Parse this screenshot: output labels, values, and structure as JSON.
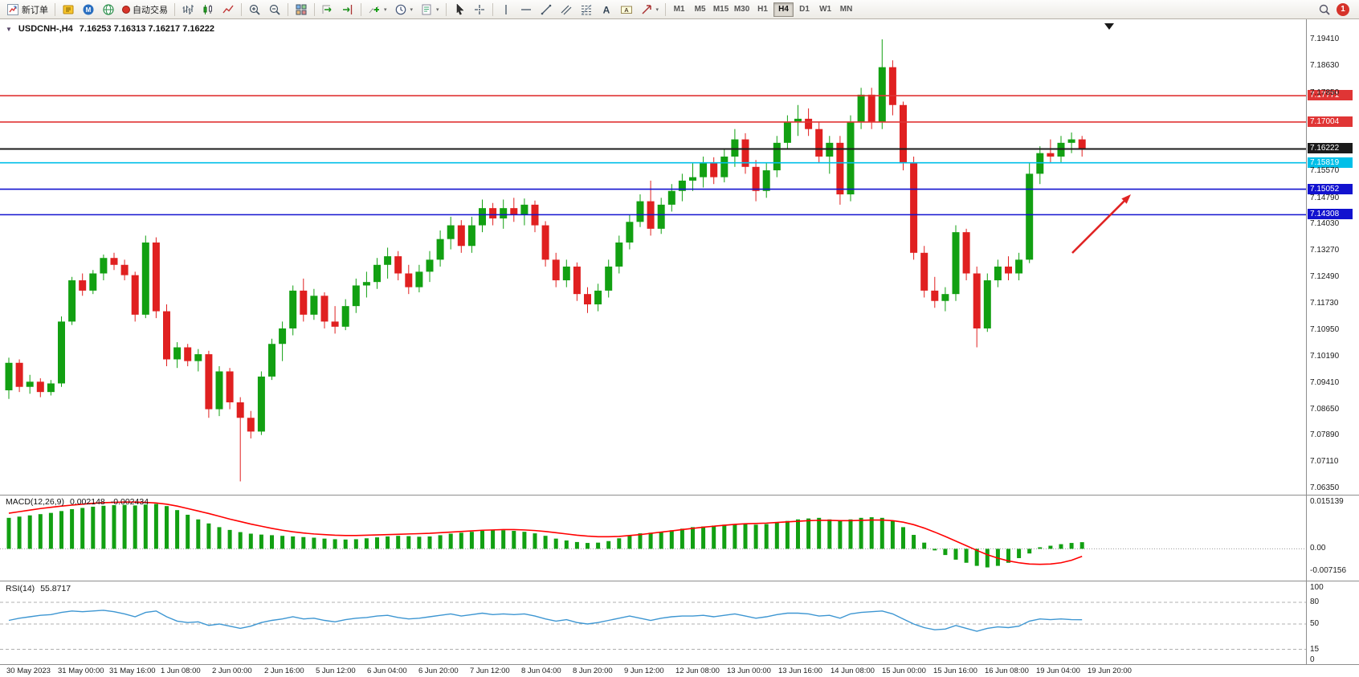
{
  "toolbar": {
    "new_order_label": "新订单",
    "autotrading_label": "自动交易",
    "timeframes": [
      "M1",
      "M5",
      "M15",
      "M30",
      "H1",
      "H4",
      "D1",
      "W1",
      "MN"
    ],
    "active_timeframe": "H4",
    "notification_count": "1"
  },
  "icons": {
    "one_click_glyph": "▼",
    "caret_glyph": "▾",
    "text_tool_glyph": "A",
    "label_tool_glyph": "A",
    "mql5_glyph": "M",
    "data_end_marker": "▼"
  },
  "chart": {
    "title_symbol": "USDCNH-,H4",
    "title_ohlc": "7.16253 7.16313 7.16217 7.16222"
  },
  "indicators": {
    "macd": {
      "label": "MACD(12,26,9)",
      "value_main": "0.002148",
      "value_signal": "-0.002434"
    },
    "rsi": {
      "label": "RSI(14)",
      "value": "55.8717"
    }
  },
  "colors": {
    "candle_up": "#12a012",
    "candle_down": "#e02020",
    "macd_histogram": "#12a012",
    "macd_signal": "#ff0000",
    "rsi_line": "#3d96d2",
    "annotation_arrow": "#e02424",
    "divider": "#8e8e8e",
    "level_dash": "#b0b0b0"
  },
  "chart_data": [
    {
      "type": "candlestick",
      "symbol": "USDCNH-",
      "timeframe": "H4",
      "title": "USDCNH-,H4",
      "current_price": 7.16222,
      "price_range": {
        "top": 7.1941,
        "bottom": 7.0635
      },
      "y_axis_ticks": [
        7.1941,
        7.1863,
        7.1785,
        7.1557,
        7.1479,
        7.1403,
        7.1327,
        7.1249,
        7.1173,
        7.1095,
        7.1019,
        7.0941,
        7.0865,
        7.0789,
        7.0711,
        7.0635
      ],
      "x_axis_labels": [
        "30 May 2023",
        "31 May 00:00",
        "31 May 16:00",
        "1 Jun 08:00",
        "2 Jun 00:00",
        "2 Jun 16:00",
        "5 Jun 12:00",
        "6 Jun 04:00",
        "6 Jun 20:00",
        "7 Jun 12:00",
        "8 Jun 04:00",
        "8 Jun 20:00",
        "9 Jun 12:00",
        "12 Jun 08:00",
        "13 Jun 00:00",
        "13 Jun 16:00",
        "14 Jun 08:00",
        "15 Jun 00:00",
        "15 Jun 16:00",
        "16 Jun 08:00",
        "19 Jun 04:00",
        "19 Jun 20:00"
      ],
      "hlines": [
        {
          "price": 7.17771,
          "label": "7.17771",
          "color": "#e03535"
        },
        {
          "price": 7.17004,
          "label": "7.17004",
          "color": "#e03535"
        },
        {
          "price": 7.16222,
          "label": "7.16222",
          "color": "#1b1b1b"
        },
        {
          "price": 7.15819,
          "label": "7.15819",
          "color": "#00bfe8"
        },
        {
          "price": 7.15052,
          "label": "7.15052",
          "color": "#1212cf"
        },
        {
          "price": 7.14308,
          "label": "7.14308",
          "color": "#1212cf"
        }
      ],
      "annotations": [
        {
          "type": "arrow",
          "color": "#e02424",
          "direction": "up-right"
        }
      ],
      "candles": [
        [
          7.092,
          7.1015,
          7.0895,
          7.1
        ],
        [
          7.1,
          7.101,
          7.0915,
          7.093
        ],
        [
          7.093,
          7.0965,
          7.091,
          7.0945
        ],
        [
          7.0945,
          7.0955,
          7.09,
          7.0915
        ],
        [
          7.0915,
          7.095,
          7.0905,
          7.094
        ],
        [
          7.094,
          7.1135,
          7.093,
          7.112
        ],
        [
          7.112,
          7.125,
          7.111,
          7.124
        ],
        [
          7.124,
          7.126,
          7.1195,
          7.121
        ],
        [
          7.121,
          7.127,
          7.12,
          7.126
        ],
        [
          7.126,
          7.1315,
          7.124,
          7.1305
        ],
        [
          7.1305,
          7.132,
          7.127,
          7.1285
        ],
        [
          7.1285,
          7.13,
          7.124,
          7.1255
        ],
        [
          7.1255,
          7.1265,
          7.112,
          7.114
        ],
        [
          7.114,
          7.137,
          7.113,
          7.135
        ],
        [
          7.135,
          7.1365,
          7.113,
          7.115
        ],
        [
          7.115,
          7.117,
          7.099,
          7.101
        ],
        [
          7.101,
          7.106,
          7.0985,
          7.1045
        ],
        [
          7.1045,
          7.1055,
          7.099,
          7.1005
        ],
        [
          7.1005,
          7.104,
          7.0975,
          7.1025
        ],
        [
          7.1025,
          7.1035,
          7.084,
          7.0865
        ],
        [
          7.0865,
          7.099,
          7.0845,
          7.0975
        ],
        [
          7.0975,
          7.0985,
          7.0865,
          7.0885
        ],
        [
          7.0885,
          7.09,
          7.0655,
          7.084
        ],
        [
          7.084,
          7.086,
          7.078,
          7.08
        ],
        [
          7.08,
          7.0975,
          7.079,
          7.096
        ],
        [
          7.096,
          7.107,
          7.095,
          7.1055
        ],
        [
          7.1055,
          7.112,
          7.1005,
          7.11
        ],
        [
          7.11,
          7.1225,
          7.108,
          7.121
        ],
        [
          7.121,
          7.1245,
          7.112,
          7.114
        ],
        [
          7.114,
          7.1215,
          7.1125,
          7.1195
        ],
        [
          7.1195,
          7.1205,
          7.11,
          7.112
        ],
        [
          7.112,
          7.1165,
          7.1085,
          7.1105
        ],
        [
          7.1105,
          7.1185,
          7.1095,
          7.1165
        ],
        [
          7.1165,
          7.1245,
          7.1145,
          7.1225
        ],
        [
          7.1225,
          7.1265,
          7.119,
          7.1235
        ],
        [
          7.1235,
          7.1305,
          7.1215,
          7.1285
        ],
        [
          7.1285,
          7.1335,
          7.1245,
          7.131
        ],
        [
          7.131,
          7.1325,
          7.124,
          7.126
        ],
        [
          7.126,
          7.1285,
          7.12,
          7.122
        ],
        [
          7.122,
          7.1285,
          7.1205,
          7.1265
        ],
        [
          7.1265,
          7.1325,
          7.1235,
          7.13
        ],
        [
          7.13,
          7.1385,
          7.128,
          7.136
        ],
        [
          7.136,
          7.1425,
          7.133,
          7.14
        ],
        [
          7.14,
          7.1415,
          7.132,
          7.134
        ],
        [
          7.134,
          7.1425,
          7.132,
          7.14
        ],
        [
          7.14,
          7.1475,
          7.138,
          7.145
        ],
        [
          7.145,
          7.1465,
          7.14,
          7.142
        ],
        [
          7.142,
          7.1475,
          7.139,
          7.145
        ],
        [
          7.145,
          7.148,
          7.141,
          7.143
        ],
        [
          7.143,
          7.1478,
          7.14,
          7.146
        ],
        [
          7.146,
          7.1472,
          7.138,
          7.14
        ],
        [
          7.14,
          7.1412,
          7.128,
          7.13
        ],
        [
          7.13,
          7.132,
          7.122,
          7.124
        ],
        [
          7.124,
          7.13,
          7.122,
          7.128
        ],
        [
          7.128,
          7.1292,
          7.118,
          7.12
        ],
        [
          7.12,
          7.122,
          7.1145,
          7.117
        ],
        [
          7.117,
          7.123,
          7.115,
          7.121
        ],
        [
          7.121,
          7.13,
          7.119,
          7.128
        ],
        [
          7.128,
          7.137,
          7.126,
          7.135
        ],
        [
          7.135,
          7.143,
          7.133,
          7.141
        ],
        [
          7.141,
          7.149,
          7.1395,
          7.147
        ],
        [
          7.147,
          7.153,
          7.137,
          7.139
        ],
        [
          7.139,
          7.148,
          7.1375,
          7.146
        ],
        [
          7.146,
          7.152,
          7.144,
          7.15
        ],
        [
          7.15,
          7.155,
          7.147,
          7.153
        ],
        [
          7.153,
          7.158,
          7.15,
          7.154
        ],
        [
          7.154,
          7.16,
          7.151,
          7.158
        ],
        [
          7.158,
          7.1598,
          7.152,
          7.154
        ],
        [
          7.154,
          7.162,
          7.1525,
          7.16
        ],
        [
          7.16,
          7.168,
          7.157,
          7.165
        ],
        [
          7.165,
          7.1668,
          7.155,
          7.157
        ],
        [
          7.157,
          7.159,
          7.147,
          7.15
        ],
        [
          7.15,
          7.158,
          7.148,
          7.156
        ],
        [
          7.156,
          7.166,
          7.154,
          7.164
        ],
        [
          7.164,
          7.172,
          7.162,
          7.17
        ],
        [
          7.17,
          7.175,
          7.166,
          7.171
        ],
        [
          7.171,
          7.174,
          7.166,
          7.168
        ],
        [
          7.168,
          7.17,
          7.158,
          7.16
        ],
        [
          7.16,
          7.166,
          7.155,
          7.164
        ],
        [
          7.164,
          7.166,
          7.146,
          7.149
        ],
        [
          7.149,
          7.172,
          7.147,
          7.17
        ],
        [
          7.17,
          7.18,
          7.168,
          7.178
        ],
        [
          7.178,
          7.18,
          7.168,
          7.17
        ],
        [
          7.17,
          7.1941,
          7.168,
          7.186
        ],
        [
          7.186,
          7.188,
          7.172,
          7.175
        ],
        [
          7.175,
          7.176,
          7.156,
          7.158
        ],
        [
          7.158,
          7.16,
          7.13,
          7.132
        ],
        [
          7.132,
          7.134,
          7.119,
          7.121
        ],
        [
          7.121,
          7.125,
          7.116,
          7.118
        ],
        [
          7.118,
          7.122,
          7.115,
          7.12
        ],
        [
          7.12,
          7.14,
          7.118,
          7.138
        ],
        [
          7.138,
          7.139,
          7.124,
          7.126
        ],
        [
          7.126,
          7.128,
          7.1045,
          7.11
        ],
        [
          7.11,
          7.126,
          7.109,
          7.124
        ],
        [
          7.124,
          7.13,
          7.122,
          7.128
        ],
        [
          7.128,
          7.131,
          7.124,
          7.126
        ],
        [
          7.126,
          7.132,
          7.124,
          7.13
        ],
        [
          7.13,
          7.158,
          7.129,
          7.155
        ],
        [
          7.155,
          7.163,
          7.152,
          7.161
        ],
        [
          7.161,
          7.165,
          7.158,
          7.16
        ],
        [
          7.16,
          7.166,
          7.158,
          7.164
        ],
        [
          7.164,
          7.167,
          7.161,
          7.165
        ],
        [
          7.165,
          7.166,
          7.16,
          7.1622
        ]
      ]
    },
    {
      "type": "bar",
      "name": "MACD",
      "params": "12,26,9",
      "scale_max": 0.015139,
      "scale_min": -0.007156,
      "scale_labels": [
        "0.015139",
        "0.00",
        "-0.007156"
      ],
      "histogram": [
        0.01,
        0.0104,
        0.0108,
        0.0112,
        0.0116,
        0.0122,
        0.0128,
        0.0132,
        0.0136,
        0.0139,
        0.0141,
        0.0142,
        0.014,
        0.0143,
        0.0145,
        0.0138,
        0.0125,
        0.011,
        0.0095,
        0.0082,
        0.007,
        0.0061,
        0.0054,
        0.0049,
        0.0046,
        0.0044,
        0.0042,
        0.004,
        0.0038,
        0.0036,
        0.0033,
        0.0031,
        0.003,
        0.0031,
        0.0034,
        0.0037,
        0.004,
        0.0042,
        0.0041,
        0.0039,
        0.004,
        0.0044,
        0.0049,
        0.0052,
        0.0055,
        0.0058,
        0.006,
        0.006,
        0.0058,
        0.0055,
        0.005,
        0.0042,
        0.0033,
        0.0027,
        0.0022,
        0.0019,
        0.002,
        0.0025,
        0.0034,
        0.0044,
        0.005,
        0.0052,
        0.0055,
        0.006,
        0.0065,
        0.007,
        0.0072,
        0.0075,
        0.0078,
        0.008,
        0.008,
        0.0078,
        0.008,
        0.0085,
        0.009,
        0.0095,
        0.0098,
        0.01,
        0.0095,
        0.009,
        0.0095,
        0.01,
        0.0102,
        0.01,
        0.009,
        0.007,
        0.0045,
        0.002,
        -0.0005,
        -0.002,
        -0.0035,
        -0.0045,
        -0.0055,
        -0.006,
        -0.0055,
        -0.0045,
        -0.003,
        -0.0015,
        0.0005,
        0.001,
        0.0015,
        0.0019,
        0.002148
      ],
      "signal": [
        0.0115,
        0.012,
        0.0125,
        0.013,
        0.0134,
        0.0138,
        0.0141,
        0.0144,
        0.0147,
        0.0149,
        0.015,
        0.0151,
        0.0151,
        0.015,
        0.0148,
        0.0144,
        0.0138,
        0.013,
        0.0122,
        0.0114,
        0.0105,
        0.0096,
        0.0088,
        0.008,
        0.0073,
        0.0066,
        0.006,
        0.0055,
        0.0051,
        0.0048,
        0.0046,
        0.0044,
        0.0043,
        0.0043,
        0.0044,
        0.0045,
        0.0046,
        0.0047,
        0.0048,
        0.0049,
        0.005,
        0.0052,
        0.0054,
        0.0056,
        0.0058,
        0.006,
        0.0061,
        0.0062,
        0.0062,
        0.0061,
        0.0059,
        0.0056,
        0.0052,
        0.0048,
        0.0044,
        0.0041,
        0.0039,
        0.0039,
        0.004,
        0.0043,
        0.0046,
        0.005,
        0.0054,
        0.0058,
        0.0062,
        0.0066,
        0.007,
        0.0073,
        0.0076,
        0.0079,
        0.0081,
        0.0082,
        0.0083,
        0.0085,
        0.0087,
        0.0089,
        0.0091,
        0.0092,
        0.0092,
        0.0091,
        0.0091,
        0.0092,
        0.0093,
        0.0093,
        0.0091,
        0.0086,
        0.0078,
        0.0067,
        0.0054,
        0.004,
        0.0025,
        0.001,
        -0.0005,
        -0.0019,
        -0.003,
        -0.0039,
        -0.0045,
        -0.0049,
        -0.005,
        -0.0049,
        -0.0045,
        -0.0037,
        -0.002434
      ]
    },
    {
      "type": "line",
      "name": "RSI",
      "params": "14",
      "value": 55.8717,
      "scale_labels": [
        100,
        80,
        50,
        15,
        0
      ],
      "levels": [
        80,
        50,
        15
      ],
      "values": [
        55,
        58,
        60,
        62,
        63,
        66,
        68,
        67,
        68,
        69,
        67,
        64,
        60,
        66,
        68,
        60,
        54,
        52,
        53,
        48,
        50,
        47,
        44,
        47,
        52,
        55,
        57,
        60,
        57,
        58,
        55,
        53,
        56,
        58,
        59,
        61,
        62,
        59,
        57,
        58,
        60,
        62,
        64,
        61,
        63,
        65,
        63,
        64,
        63,
        64,
        61,
        57,
        54,
        56,
        52,
        50,
        52,
        55,
        58,
        61,
        58,
        55,
        58,
        60,
        61,
        61,
        62,
        60,
        62,
        64,
        61,
        58,
        60,
        63,
        65,
        65,
        64,
        61,
        62,
        58,
        64,
        66,
        67,
        68,
        64,
        57,
        50,
        45,
        42,
        43,
        48,
        44,
        40,
        44,
        46,
        45,
        47,
        54,
        57,
        56,
        57,
        56,
        55.87
      ]
    }
  ]
}
